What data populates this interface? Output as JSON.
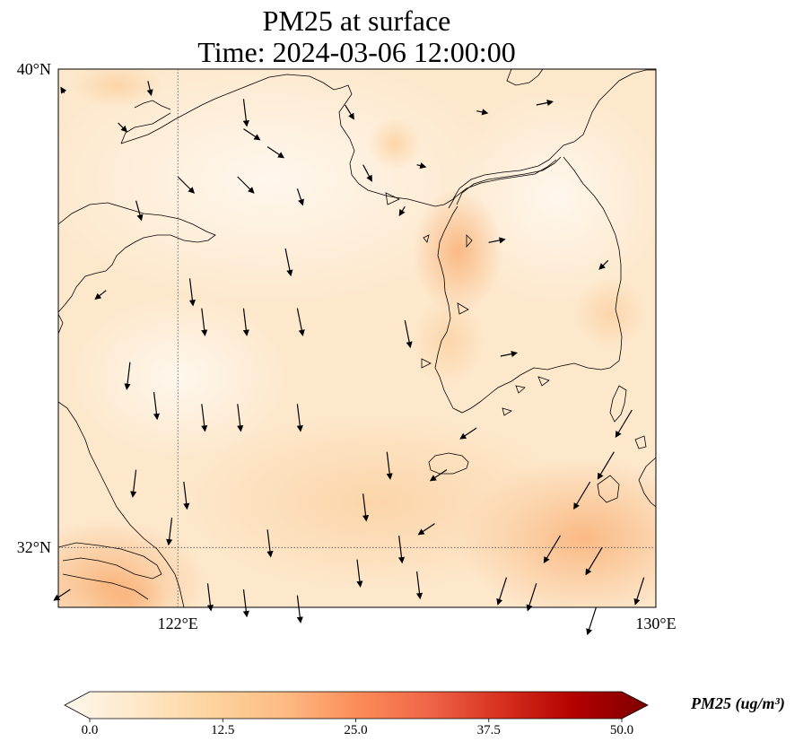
{
  "title": {
    "line1": "PM25 at surface",
    "line2": "Time: 2024-03-06 12:00:00"
  },
  "axes": {
    "lon_range": [
      120,
      130
    ],
    "lat_range": [
      31,
      40
    ],
    "lat_ticks": [
      {
        "value": 40,
        "label": "40°N"
      },
      {
        "value": 32,
        "label": "32°N"
      }
    ],
    "lon_ticks": [
      {
        "value": 122,
        "label": "122°E"
      },
      {
        "value": 130,
        "label": "130°E"
      }
    ],
    "gridlines": [
      {
        "axis": "lon",
        "value": 122
      },
      {
        "axis": "lat",
        "value": 32
      }
    ]
  },
  "colorbar": {
    "label": "PM25 (ug/m³)",
    "colormap": "OrRd",
    "min": 0,
    "max": 50,
    "extend": "both",
    "ticks": [
      "0.0",
      "12.5",
      "25.0",
      "37.5",
      "50.0"
    ],
    "colors": [
      "#fff7ec",
      "#fee8c8",
      "#fdd49e",
      "#fdbb84",
      "#fc8d59",
      "#ef6548",
      "#d7301f",
      "#b30000",
      "#7f0000"
    ]
  },
  "chart_data": {
    "type": "heatmap",
    "variable": "PM25 at surface",
    "units": "ug/m3",
    "time": "2024-03-06 12:00:00",
    "approx_field": [
      {
        "lon": 120.5,
        "lat": 39.9,
        "value": 8
      },
      {
        "lon": 122.0,
        "lat": 39.0,
        "value": 6
      },
      {
        "lon": 125.5,
        "lat": 39.0,
        "value": 4
      },
      {
        "lon": 126.7,
        "lat": 37.5,
        "value": 17
      },
      {
        "lon": 126.5,
        "lat": 36.0,
        "value": 12
      },
      {
        "lon": 128.5,
        "lat": 35.0,
        "value": 10
      },
      {
        "lon": 129.0,
        "lat": 32.5,
        "value": 12
      },
      {
        "lon": 124.0,
        "lat": 33.0,
        "value": 8
      },
      {
        "lon": 121.0,
        "lat": 31.3,
        "value": 16
      },
      {
        "lon": 120.5,
        "lat": 35.5,
        "value": 6
      }
    ],
    "wind_vectors": [
      {
        "lon": 120.1,
        "lat": 39.6,
        "u": -0.3,
        "v": 0.5
      },
      {
        "lon": 121.5,
        "lat": 39.8,
        "u": 0.3,
        "v": -1.3
      },
      {
        "lon": 121.0,
        "lat": 39.1,
        "u": 0.8,
        "v": -0.8
      },
      {
        "lon": 123.1,
        "lat": 39.5,
        "u": 0.3,
        "v": -2.5
      },
      {
        "lon": 123.1,
        "lat": 39.0,
        "u": 1.5,
        "v": -1.0
      },
      {
        "lon": 123.5,
        "lat": 38.7,
        "u": 1.5,
        "v": -1.0
      },
      {
        "lon": 124.8,
        "lat": 39.4,
        "u": 0.8,
        "v": -1.3
      },
      {
        "lon": 127.0,
        "lat": 39.3,
        "u": 1.0,
        "v": -0.2
      },
      {
        "lon": 128.0,
        "lat": 39.4,
        "u": 1.5,
        "v": 0.3
      },
      {
        "lon": 122.0,
        "lat": 38.2,
        "u": 1.5,
        "v": -1.5
      },
      {
        "lon": 123.0,
        "lat": 38.2,
        "u": 1.5,
        "v": -1.5
      },
      {
        "lon": 124.0,
        "lat": 38.0,
        "u": 0.5,
        "v": -1.5
      },
      {
        "lon": 125.1,
        "lat": 38.4,
        "u": 0.8,
        "v": -1.5
      },
      {
        "lon": 126.0,
        "lat": 38.4,
        "u": 0.8,
        "v": -0.2
      },
      {
        "lon": 121.3,
        "lat": 37.8,
        "u": 0.5,
        "v": -1.8
      },
      {
        "lon": 123.8,
        "lat": 37.0,
        "u": 0.5,
        "v": -2.5
      },
      {
        "lon": 125.8,
        "lat": 37.7,
        "u": -0.5,
        "v": -0.8
      },
      {
        "lon": 127.2,
        "lat": 37.1,
        "u": 1.5,
        "v": 0.3
      },
      {
        "lon": 129.2,
        "lat": 36.8,
        "u": -0.8,
        "v": -0.8
      },
      {
        "lon": 122.4,
        "lat": 36.0,
        "u": 0.3,
        "v": -2.5
      },
      {
        "lon": 123.1,
        "lat": 36.0,
        "u": 0.3,
        "v": -2.5
      },
      {
        "lon": 124.0,
        "lat": 36.0,
        "u": 0.5,
        "v": -2.5
      },
      {
        "lon": 125.8,
        "lat": 35.8,
        "u": 0.5,
        "v": -2.5
      },
      {
        "lon": 127.4,
        "lat": 35.2,
        "u": 1.5,
        "v": 0.3
      },
      {
        "lon": 121.2,
        "lat": 35.1,
        "u": -0.3,
        "v": -2.5
      },
      {
        "lon": 121.6,
        "lat": 34.6,
        "u": 0.3,
        "v": -2.5
      },
      {
        "lon": 122.4,
        "lat": 34.4,
        "u": 0.3,
        "v": -2.5
      },
      {
        "lon": 123.0,
        "lat": 34.4,
        "u": 0.3,
        "v": -2.5
      },
      {
        "lon": 124.0,
        "lat": 34.4,
        "u": 0.3,
        "v": -2.5
      },
      {
        "lon": 125.5,
        "lat": 33.6,
        "u": 0.3,
        "v": -2.5
      },
      {
        "lon": 126.5,
        "lat": 33.3,
        "u": -1.5,
        "v": -1.0
      },
      {
        "lon": 129.6,
        "lat": 34.3,
        "u": -1.5,
        "v": -2.5
      },
      {
        "lon": 125.1,
        "lat": 32.9,
        "u": 0.3,
        "v": -2.5
      },
      {
        "lon": 126.3,
        "lat": 32.4,
        "u": -1.5,
        "v": -1.0
      },
      {
        "lon": 128.4,
        "lat": 32.2,
        "u": -1.5,
        "v": -2.5
      },
      {
        "lon": 129.1,
        "lat": 32.0,
        "u": -1.5,
        "v": -2.5
      },
      {
        "lon": 122.5,
        "lat": 31.4,
        "u": 0.3,
        "v": -2.5
      },
      {
        "lon": 123.1,
        "lat": 31.3,
        "u": 0.3,
        "v": -2.5
      },
      {
        "lon": 124.0,
        "lat": 31.2,
        "u": 0.3,
        "v": -2.5
      },
      {
        "lon": 125.0,
        "lat": 31.8,
        "u": 0.3,
        "v": -2.5
      },
      {
        "lon": 126.0,
        "lat": 31.6,
        "u": 0.3,
        "v": -2.5
      },
      {
        "lon": 127.5,
        "lat": 31.5,
        "u": -0.8,
        "v": -2.5
      },
      {
        "lon": 128.0,
        "lat": 31.4,
        "u": -0.8,
        "v": -2.5
      },
      {
        "lon": 129.0,
        "lat": 31.0,
        "u": -0.8,
        "v": -2.5
      },
      {
        "lon": 129.8,
        "lat": 31.5,
        "u": -0.8,
        "v": -2.5
      },
      {
        "lon": 120.2,
        "lat": 31.3,
        "u": -1.5,
        "v": -1.0
      },
      {
        "lon": 121.9,
        "lat": 32.5,
        "u": -0.3,
        "v": -2.5
      },
      {
        "lon": 121.3,
        "lat": 33.3,
        "u": -0.3,
        "v": -2.5
      },
      {
        "lon": 122.1,
        "lat": 33.1,
        "u": 0.3,
        "v": -2.5
      },
      {
        "lon": 123.5,
        "lat": 32.3,
        "u": 0.3,
        "v": -2.5
      },
      {
        "lon": 125.7,
        "lat": 32.2,
        "u": 0.3,
        "v": -2.5
      },
      {
        "lon": 127.0,
        "lat": 34.0,
        "u": -1.5,
        "v": -1.0
      },
      {
        "lon": 129.3,
        "lat": 33.6,
        "u": -1.5,
        "v": -2.5
      },
      {
        "lon": 128.9,
        "lat": 33.1,
        "u": -1.5,
        "v": -2.5
      },
      {
        "lon": 120.8,
        "lat": 36.3,
        "u": -1.0,
        "v": -0.8
      },
      {
        "lon": 122.2,
        "lat": 36.5,
        "u": 0.3,
        "v": -2.5
      }
    ]
  }
}
